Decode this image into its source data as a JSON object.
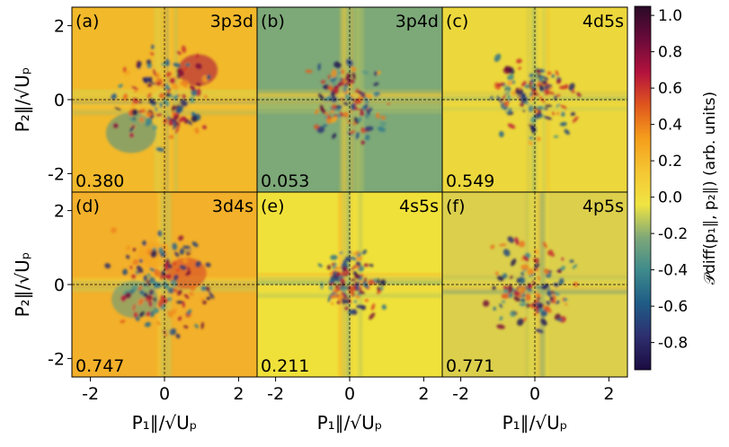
{
  "chart_data": {
    "type": "heatmap",
    "layout": "2x3 grid of 2D momentum-correlation maps sharing axes",
    "xlabel": "P₁∥/√Uₚ",
    "ylabel": "P₂∥/√Uₚ",
    "xlim": [
      -2.5,
      2.5
    ],
    "ylim": [
      -2.5,
      2.5
    ],
    "xticks": [
      -2,
      0,
      2
    ],
    "yticks": [
      -2,
      0,
      2
    ],
    "colorbar": {
      "label": "𝒫diff(p₁∥, p₂∥) (arb. units)",
      "range": [
        -0.95,
        1.05
      ],
      "ticks": [
        1.0,
        0.8,
        0.6,
        0.4,
        0.2,
        0.0,
        -0.2,
        -0.4,
        -0.6,
        -0.8
      ],
      "tick_labels": [
        "1.0",
        "0.8",
        "0.6",
        "0.4",
        "0.2",
        "0.0",
        "-0.2",
        "-0.4",
        "-0.6",
        "-0.8"
      ],
      "colormap": [
        "#1b0c41",
        "#2e2e6e",
        "#1f5b86",
        "#3d8a8c",
        "#7ea878",
        "#f0e442",
        "#f5c634",
        "#f59e1c",
        "#e0571d",
        "#b3123d",
        "#6a0a3a",
        "#2a0a28"
      ]
    },
    "panels": [
      {
        "label": "(a)",
        "config": "3p3d",
        "value": "0.380",
        "background": "#f2b92b"
      },
      {
        "label": "(b)",
        "config": "3p4d",
        "value": "0.053",
        "background": "#7da878"
      },
      {
        "label": "(c)",
        "config": "4d5s",
        "value": "0.549",
        "background": "#ecd83c"
      },
      {
        "label": "(d)",
        "config": "3d4s",
        "value": "0.747",
        "background": "#f3b02a"
      },
      {
        "label": "(e)",
        "config": "4s5s",
        "value": "0.211",
        "background": "#f0e13a"
      },
      {
        "label": "(f)",
        "config": "4p5s",
        "value": "0.771",
        "background": "#dccf4c"
      }
    ]
  }
}
